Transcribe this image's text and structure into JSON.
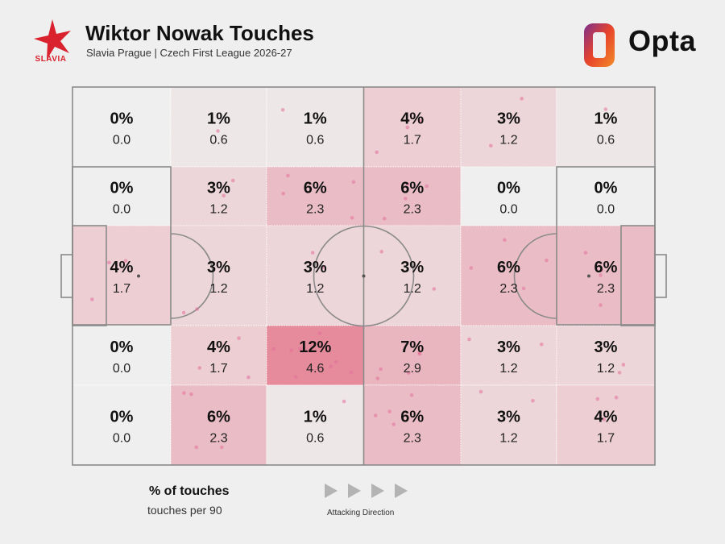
{
  "header": {
    "title": "Wiktor Nowak Touches",
    "subtitle": "Slavia Prague | Czech First League 2026-27",
    "club_label": "SLAVIA",
    "provider": "Opta",
    "club_color": "#d9222e",
    "provider_colors": [
      "#7b2f8f",
      "#e8442b",
      "#f28c28"
    ]
  },
  "legend": {
    "primary": "% of touches",
    "secondary": "touches per 90",
    "direction_label": "Attacking Direction"
  },
  "chart_data": {
    "type": "heatmap",
    "title": "Wiktor Nowak Touches",
    "grid": {
      "columns": 6,
      "rows": 5
    },
    "cells": [
      [
        {
          "pct": "0%",
          "p90": "0.0",
          "value": 0
        },
        {
          "pct": "1%",
          "p90": "0.6",
          "value": 1
        },
        {
          "pct": "1%",
          "p90": "0.6",
          "value": 1
        },
        {
          "pct": "4%",
          "p90": "1.7",
          "value": 4
        },
        {
          "pct": "3%",
          "p90": "1.2",
          "value": 3
        },
        {
          "pct": "1%",
          "p90": "0.6",
          "value": 1
        }
      ],
      [
        {
          "pct": "0%",
          "p90": "0.0",
          "value": 0
        },
        {
          "pct": "3%",
          "p90": "1.2",
          "value": 3
        },
        {
          "pct": "6%",
          "p90": "2.3",
          "value": 6
        },
        {
          "pct": "6%",
          "p90": "2.3",
          "value": 6
        },
        {
          "pct": "0%",
          "p90": "0.0",
          "value": 0
        },
        {
          "pct": "0%",
          "p90": "0.0",
          "value": 0
        }
      ],
      [
        {
          "pct": "4%",
          "p90": "1.7",
          "value": 4
        },
        {
          "pct": "3%",
          "p90": "1.2",
          "value": 3
        },
        {
          "pct": "3%",
          "p90": "1.2",
          "value": 3
        },
        {
          "pct": "3%",
          "p90": "1.2",
          "value": 3
        },
        {
          "pct": "6%",
          "p90": "2.3",
          "value": 6
        },
        {
          "pct": "6%",
          "p90": "2.3",
          "value": 6
        }
      ],
      [
        {
          "pct": "0%",
          "p90": "0.0",
          "value": 0
        },
        {
          "pct": "4%",
          "p90": "1.7",
          "value": 4
        },
        {
          "pct": "12%",
          "p90": "4.6",
          "value": 12
        },
        {
          "pct": "7%",
          "p90": "2.9",
          "value": 7
        },
        {
          "pct": "3%",
          "p90": "1.2",
          "value": 3
        },
        {
          "pct": "3%",
          "p90": "1.2",
          "value": 3
        }
      ],
      [
        {
          "pct": "0%",
          "p90": "0.0",
          "value": 0
        },
        {
          "pct": "6%",
          "p90": "2.3",
          "value": 6
        },
        {
          "pct": "1%",
          "p90": "0.6",
          "value": 1
        },
        {
          "pct": "6%",
          "p90": "2.3",
          "value": 6
        },
        {
          "pct": "3%",
          "p90": "1.2",
          "value": 3
        },
        {
          "pct": "4%",
          "p90": "1.7",
          "value": 4
        }
      ]
    ],
    "color_scale": {
      "low": "#efefef",
      "high": "#e58b9c"
    },
    "touch_color": "#e36f9b",
    "legend_placement": "bottom-left"
  }
}
